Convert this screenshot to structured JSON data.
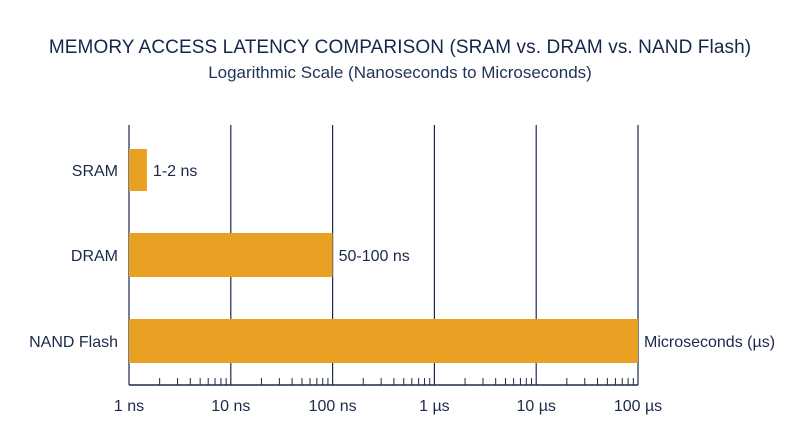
{
  "chart_data": {
    "type": "bar",
    "orientation": "horizontal",
    "title": "MEMORY ACCESS LATENCY COMPARISON (SRAM vs. DRAM vs. NAND Flash)",
    "subtitle": "Logarithmic Scale (Nanoseconds to Microseconds)",
    "x_scale": "log",
    "x_unit": "ns",
    "xlim": [
      1,
      100000
    ],
    "x_ticks": [
      {
        "value": 1,
        "label": "1 ns"
      },
      {
        "value": 10,
        "label": "10 ns"
      },
      {
        "value": 100,
        "label": "100 ns"
      },
      {
        "value": 1000,
        "label": "1 µs"
      },
      {
        "value": 10000,
        "label": "10 µs"
      },
      {
        "value": 100000,
        "label": "100 µs"
      }
    ],
    "grid": "vertical major gridlines",
    "categories": [
      "SRAM",
      "DRAM",
      "NAND Flash"
    ],
    "values": [
      1.5,
      100,
      100000
    ],
    "data_labels": [
      "1-2 ns",
      "50-100 ns",
      "Microseconds (µs)"
    ],
    "colors": {
      "bar": "#E8A122",
      "axis": "#1b2a4a",
      "grid": "#1b2a4a",
      "text": "#1b2a4a"
    }
  }
}
